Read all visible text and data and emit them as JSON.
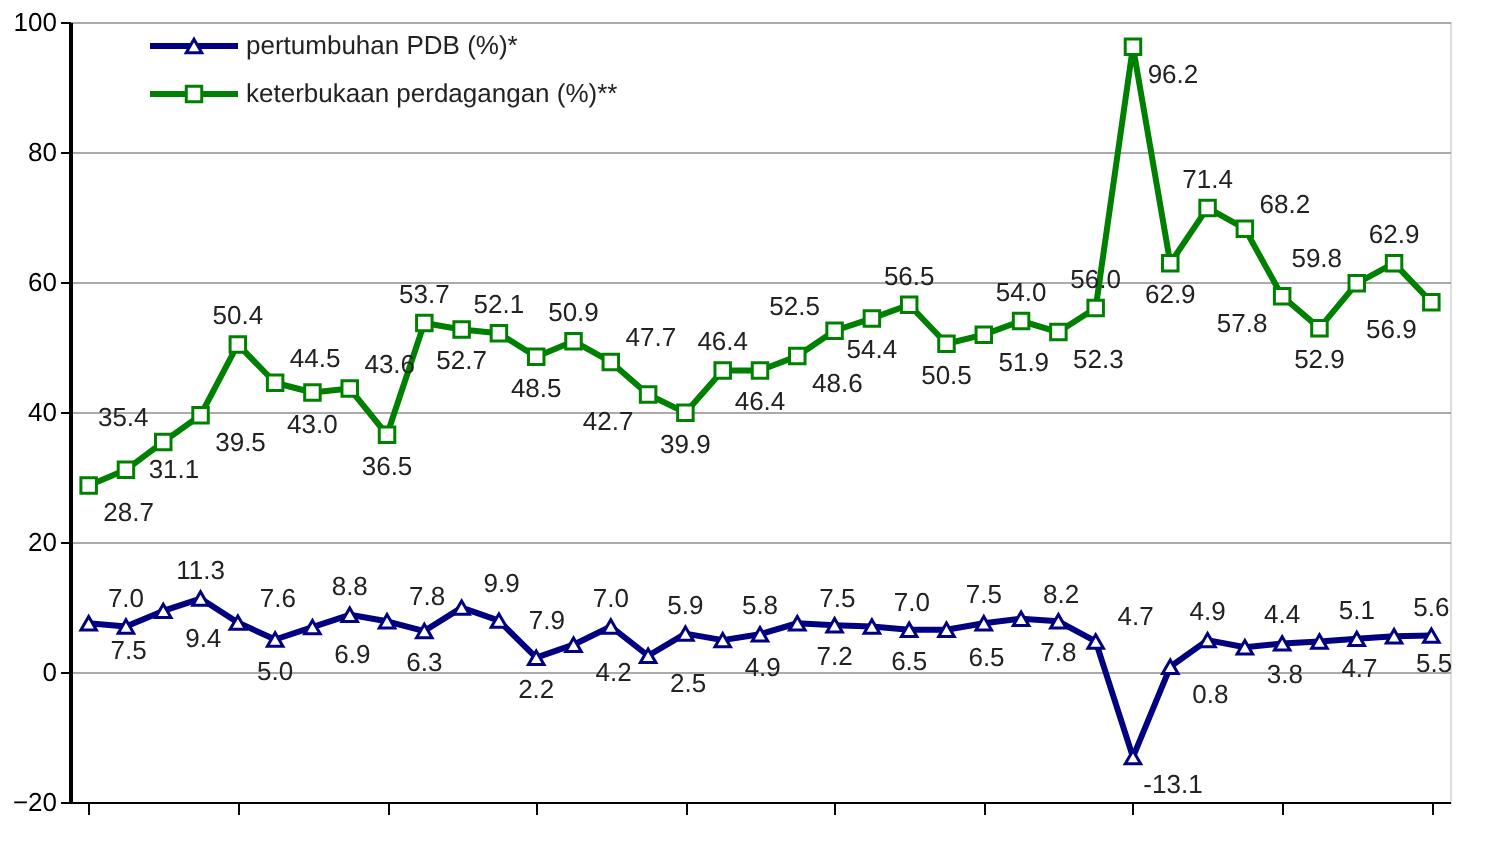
{
  "chart_data": {
    "type": "line",
    "categories": [
      null,
      null,
      null,
      null,
      null,
      null,
      null,
      null,
      null,
      null,
      null,
      null,
      null,
      null,
      null,
      null,
      null,
      null,
      null,
      null,
      null,
      null,
      null,
      null,
      null,
      null,
      null,
      null,
      null,
      null,
      null,
      null,
      null,
      null,
      null,
      null,
      null
    ],
    "series": [
      {
        "name": "pertumbuhan PDB (%)*",
        "color": "#000080",
        "marker": "triangle",
        "values": [
          7.5,
          7.0,
          9.4,
          11.3,
          7.6,
          5.0,
          6.9,
          8.8,
          7.8,
          6.3,
          9.9,
          7.9,
          2.2,
          4.2,
          7.0,
          2.5,
          5.9,
          4.9,
          5.8,
          7.5,
          7.2,
          7.0,
          6.5,
          6.5,
          7.5,
          8.2,
          7.8,
          4.7,
          -13.1,
          0.8,
          4.9,
          3.8,
          4.4,
          4.7,
          5.1,
          5.5,
          5.6
        ],
        "value_labels": [
          "7.5",
          "7.0",
          "9.4",
          "11.3",
          "7.6",
          "5.0",
          "6.9",
          "8.8",
          "7.8",
          "6.3",
          "9.9",
          "7.9",
          "2.2",
          "4.2",
          "7.0",
          "2.5",
          "5.9",
          "4.9",
          "5.8",
          "7.5",
          "7.2",
          "7.0",
          "6.5",
          "6.5",
          "7.5",
          "8.2",
          "7.8",
          "4.7",
          "-13.1",
          "0.8",
          "4.9",
          "3.8",
          "4.4",
          "4.7",
          "5.1",
          "5.5",
          "5.6"
        ]
      },
      {
        "name": "keterbukaan perdagangan (%)**",
        "color": "#008000",
        "marker": "square",
        "values": [
          28.7,
          31.1,
          35.4,
          39.5,
          50.4,
          44.5,
          43.0,
          43.6,
          36.5,
          53.7,
          52.7,
          52.1,
          48.5,
          50.9,
          47.7,
          42.7,
          39.9,
          46.4,
          46.4,
          48.6,
          52.5,
          54.4,
          56.5,
          50.5,
          51.9,
          54.0,
          52.3,
          56.0,
          96.2,
          62.9,
          71.4,
          68.2,
          57.8,
          52.9,
          59.8,
          62.9,
          56.9
        ],
        "value_labels": [
          "28.7",
          "31.1",
          "35.4",
          "39.5",
          "50.4",
          "44.5",
          "43.0",
          "43.6",
          "36.5",
          "53.7",
          "52.7",
          "52.1",
          "48.5",
          "50.9",
          "47.7",
          "42.7",
          "39.9",
          "46.4",
          "46.4",
          "48.6",
          "52.5",
          "54.4",
          "56.5",
          "50.5",
          "51.9",
          "54.0",
          "52.3",
          "56.0",
          "96.2",
          "62.9",
          "71.4",
          "68.2",
          "57.8",
          "52.9",
          "59.8",
          "62.9",
          "56.9"
        ]
      }
    ],
    "ylim": [
      -20,
      100
    ],
    "yticks": [
      -20,
      0,
      20,
      40,
      60,
      80,
      100
    ],
    "grid": "y",
    "legend": "top left",
    "line_style": "solid"
  }
}
